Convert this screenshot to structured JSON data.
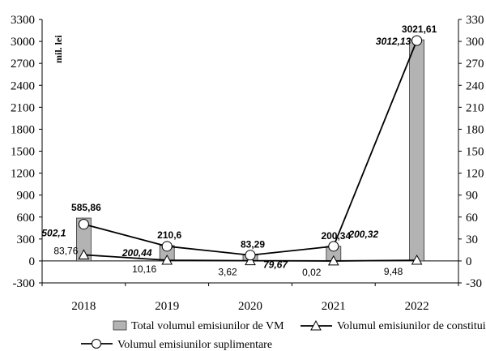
{
  "chart_data": {
    "type": "bar",
    "categories": [
      "2018",
      "2019",
      "2020",
      "2021",
      "2022"
    ],
    "unit_label": "mil. lei",
    "ylim": [
      -300,
      3300
    ],
    "y_ticks": [
      "-300",
      "0",
      "300",
      "600",
      "900",
      "1200",
      "1500",
      "1800",
      "2100",
      "2400",
      "2700",
      "3000",
      "3300"
    ],
    "y2lim": [
      -30,
      330
    ],
    "y2_ticks": [
      "-30",
      "0",
      "30",
      "60",
      "90",
      "120",
      "150",
      "180",
      "210",
      "240",
      "270",
      "300",
      "330"
    ],
    "grid": false,
    "legend_position": "bottom",
    "series": [
      {
        "name": "Total volumul emisiunilor de VM",
        "kind": "bar",
        "axis": "left",
        "color": "#b3b3b3",
        "values": [
          585.86,
          210.6,
          83.29,
          200.34,
          3021.61
        ],
        "labels": [
          "585,86",
          "210,6",
          "83,29",
          "200,34",
          "3021,61"
        ]
      },
      {
        "name": "Volumul emisiunilor de constituire",
        "kind": "line",
        "marker": "triangle",
        "axis": "left",
        "color": "#000000",
        "values": [
          83.76,
          10.16,
          3.62,
          0.02,
          9.48
        ],
        "labels": [
          "83,76",
          "10,16",
          "3,62",
          "0,02",
          "9,48"
        ]
      },
      {
        "name": "Volumul emisiunilor suplimentare",
        "kind": "line",
        "marker": "circle",
        "axis": "right",
        "color": "#000000",
        "values": [
          50.21,
          20.044,
          7.967,
          20.032,
          301.213
        ],
        "labels": [
          "502,1",
          "200,44",
          "79,67",
          "200,32",
          "3012,13"
        ]
      }
    ]
  }
}
